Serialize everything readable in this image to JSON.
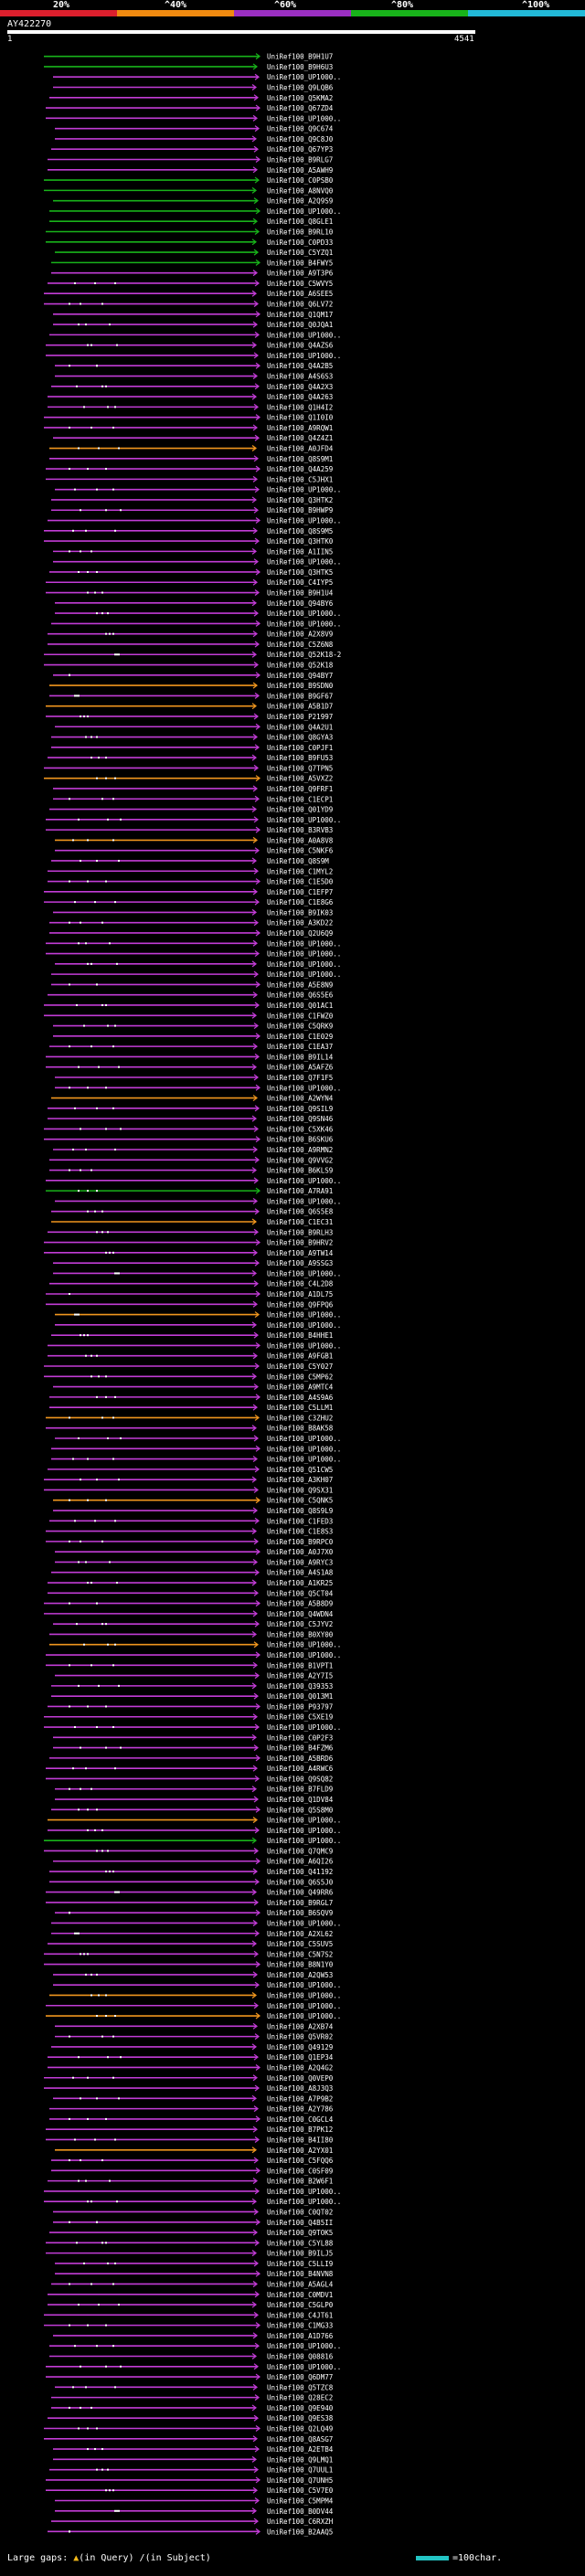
{
  "legend": {
    "labels": [
      "20%",
      "^40%",
      "^60%",
      "^80%",
      "^100%"
    ],
    "colors": [
      "#dd1f2d",
      "#f08a10",
      "#9b2fc2",
      "#18b31a",
      "#22b9d8"
    ]
  },
  "query": {
    "title": "AY422270",
    "start": "1",
    "end": "4541"
  },
  "footer": {
    "prefix": "Large gaps:",
    "in_query": "(in Query)",
    "in_subject": "(in Subject)",
    "scale": "=100char."
  },
  "hits": [
    {
      "label": "UniRef100_B9H1U7",
      "color": "green"
    },
    {
      "label": "UniRef100_B9H6U3",
      "color": "green"
    },
    {
      "label": "UniRef100_UP1000..",
      "color": "purple"
    },
    {
      "label": "UniRef100_Q9LQB6",
      "color": "purple"
    },
    {
      "label": "UniRef100_Q5KMA2",
      "color": "purple"
    },
    {
      "label": "UniRef100_Q67ZD4",
      "color": "purple"
    },
    {
      "label": "UniRef100_UP1000..",
      "color": "purple"
    },
    {
      "label": "UniRef100_Q9C674",
      "color": "purple"
    },
    {
      "label": "UniRef100_Q9C8J0",
      "color": "purple"
    },
    {
      "label": "UniRef100_Q67YP3",
      "color": "purple"
    },
    {
      "label": "UniRef100_B9RLG7",
      "color": "purple"
    },
    {
      "label": "UniRef100_A5AWH9",
      "color": "purple"
    },
    {
      "label": "UniRef100_C0PSB0",
      "color": "green"
    },
    {
      "label": "UniRef100_A8NVQ0",
      "color": "green"
    },
    {
      "label": "UniRef100_A2Q9S9",
      "color": "green"
    },
    {
      "label": "UniRef100_UP1000..",
      "color": "green"
    },
    {
      "label": "UniRef100_Q8GLE1",
      "color": "green"
    },
    {
      "label": "UniRef100_B9RL10",
      "color": "green"
    },
    {
      "label": "UniRef100_C0PD33",
      "color": "green"
    },
    {
      "label": "UniRef100_C5YZQ1",
      "color": "green"
    },
    {
      "label": "UniRef100_B4FWY5",
      "color": "green"
    },
    {
      "label": "UniRef100_A9T3P6",
      "color": "purple"
    },
    {
      "label": "UniRef100_C5WVY5",
      "color": "purple"
    },
    {
      "label": "UniRef100_A6SEE5",
      "color": "purple"
    },
    {
      "label": "UniRef100_Q6LV72",
      "color": "purple"
    },
    {
      "label": "UniRef100_Q1QM17",
      "color": "purple"
    },
    {
      "label": "UniRef100_Q0JQA1",
      "color": "purple"
    },
    {
      "label": "UniRef100_UP1000..",
      "color": "purple"
    },
    {
      "label": "UniRef100_Q4AZS6",
      "color": "purple"
    },
    {
      "label": "UniRef100_UP1000..",
      "color": "purple"
    },
    {
      "label": "UniRef100_Q4A2B5",
      "color": "purple"
    },
    {
      "label": "UniRef100_A4S6S3",
      "color": "purple"
    },
    {
      "label": "UniRef100_Q4A2X3",
      "color": "purple"
    },
    {
      "label": "UniRef100_Q4A263",
      "color": "purple"
    },
    {
      "label": "UniRef100_Q1H4I2",
      "color": "purple"
    },
    {
      "label": "UniRef100_Q1I0I0",
      "color": "purple"
    },
    {
      "label": "UniRef100_A9RQW1",
      "color": "purple"
    },
    {
      "label": "UniRef100_Q4Z4Z1",
      "color": "purple"
    },
    {
      "label": "UniRef100_A0JFD4",
      "color": "orange"
    },
    {
      "label": "UniRef100_Q8S9M1",
      "color": "purple"
    },
    {
      "label": "UniRef100_Q4A259",
      "color": "purple"
    },
    {
      "label": "UniRef100_C5JHX1",
      "color": "purple"
    },
    {
      "label": "UniRef100_UP1000..",
      "color": "purple"
    },
    {
      "label": "UniRef100_Q3HTK2",
      "color": "purple"
    },
    {
      "label": "UniRef100_B9HWP9",
      "color": "purple"
    },
    {
      "label": "UniRef100_UP1000..",
      "color": "purple"
    },
    {
      "label": "UniRef100_Q8S9M5",
      "color": "purple"
    },
    {
      "label": "UniRef100_Q3HTK0",
      "color": "purple"
    },
    {
      "label": "UniRef100_A1IIN5",
      "color": "purple"
    },
    {
      "label": "UniRef100_UP1000..",
      "color": "purple"
    },
    {
      "label": "UniRef100_Q3HTK5",
      "color": "purple"
    },
    {
      "label": "UniRef100_C4IYP5",
      "color": "purple"
    },
    {
      "label": "UniRef100_B9H1U4",
      "color": "purple"
    },
    {
      "label": "UniRef100_Q94BY6",
      "color": "purple"
    },
    {
      "label": "UniRef100_UP1000..",
      "color": "purple"
    },
    {
      "label": "UniRef100_UP1000..",
      "color": "purple"
    },
    {
      "label": "UniRef100_A2X8V9",
      "color": "purple"
    },
    {
      "label": "UniRef100_C5Z6N8",
      "color": "purple"
    },
    {
      "label": "UniRef100_Q52K18-2",
      "color": "purple"
    },
    {
      "label": "UniRef100_Q52K18",
      "color": "purple"
    },
    {
      "label": "UniRef100_Q94BY7",
      "color": "purple"
    },
    {
      "label": "UniRef100_B9SDN0",
      "color": "orange"
    },
    {
      "label": "UniRef100_B9GF67",
      "color": "purple"
    },
    {
      "label": "UniRef100_A5B1D7",
      "color": "orange"
    },
    {
      "label": "UniRef100_P21997",
      "color": "purple"
    },
    {
      "label": "UniRef100_Q4A2U1",
      "color": "purple"
    },
    {
      "label": "UniRef100_Q8GYA3",
      "color": "purple"
    },
    {
      "label": "UniRef100_C0PJF1",
      "color": "purple"
    },
    {
      "label": "UniRef100_B9FU53",
      "color": "purple"
    },
    {
      "label": "UniRef100_Q7TPN5",
      "color": "purple"
    },
    {
      "label": "UniRef100_A5VXZ2",
      "color": "orange"
    },
    {
      "label": "UniRef100_Q9FRF1",
      "color": "purple"
    },
    {
      "label": "UniRef100_C1ECP1",
      "color": "purple"
    },
    {
      "label": "UniRef100_Q01YD9",
      "color": "purple"
    },
    {
      "label": "UniRef100_UP1000..",
      "color": "purple"
    },
    {
      "label": "UniRef100_B3RVB3",
      "color": "purple"
    },
    {
      "label": "UniRef100_A0A8V8",
      "color": "orange"
    },
    {
      "label": "UniRef100_C5NKF6",
      "color": "purple"
    },
    {
      "label": "UniRef100_Q8S9M",
      "color": "purple"
    },
    {
      "label": "UniRef100_C1MYL2",
      "color": "purple"
    },
    {
      "label": "UniRef100_C1E5D0",
      "color": "purple"
    },
    {
      "label": "UniRef100_C1EFP7",
      "color": "purple"
    },
    {
      "label": "UniRef100_C1E8G6",
      "color": "purple"
    },
    {
      "label": "UniRef100_B9IK03",
      "color": "purple"
    },
    {
      "label": "UniRef100_A3KD22",
      "color": "purple"
    },
    {
      "label": "UniRef100_Q2U6Q9",
      "color": "purple"
    },
    {
      "label": "UniRef100_UP1000..",
      "color": "purple"
    },
    {
      "label": "UniRef100_UP1000..",
      "color": "purple"
    },
    {
      "label": "UniRef100_UP1000..",
      "color": "purple"
    },
    {
      "label": "UniRef100_UP1000..",
      "color": "purple"
    },
    {
      "label": "UniRef100_A5E8N9",
      "color": "purple"
    },
    {
      "label": "UniRef100_Q6S5E6",
      "color": "purple"
    },
    {
      "label": "UniRef100_Q01AC1",
      "color": "purple"
    },
    {
      "label": "UniRef100_C1FWZ0",
      "color": "purple"
    },
    {
      "label": "UniRef100_C5QRK9",
      "color": "purple"
    },
    {
      "label": "UniRef100_C1E029",
      "color": "purple"
    },
    {
      "label": "UniRef100_C1EA37",
      "color": "purple"
    },
    {
      "label": "UniRef100_B9IL14",
      "color": "purple"
    },
    {
      "label": "UniRef100_A5AFZ6",
      "color": "purple"
    },
    {
      "label": "UniRef100_Q7F1F5",
      "color": "purple"
    },
    {
      "label": "UniRef100_UP1000..",
      "color": "purple"
    },
    {
      "label": "UniRef100_A2WYN4",
      "color": "orange"
    },
    {
      "label": "UniRef100_Q9SIL9",
      "color": "purple"
    },
    {
      "label": "UniRef100_Q9SN46",
      "color": "purple"
    },
    {
      "label": "UniRef100_C5XK46",
      "color": "purple"
    },
    {
      "label": "UniRef100_B6SKU6",
      "color": "purple"
    },
    {
      "label": "UniRef100_A9RMN2",
      "color": "purple"
    },
    {
      "label": "UniRef100_Q9VVG2",
      "color": "purple"
    },
    {
      "label": "UniRef100_B6KLS9",
      "color": "purple"
    },
    {
      "label": "UniRef100_UP1000..",
      "color": "purple"
    },
    {
      "label": "UniRef100_A7RA91",
      "color": "green"
    },
    {
      "label": "UniRef100_UP1000..",
      "color": "purple"
    },
    {
      "label": "UniRef100_Q6S5E8",
      "color": "purple"
    },
    {
      "label": "UniRef100_C1EC31",
      "color": "orange"
    },
    {
      "label": "UniRef100_B9RLH3",
      "color": "purple"
    },
    {
      "label": "UniRef100_B9HRV2",
      "color": "purple"
    },
    {
      "label": "UniRef100_A9TW14",
      "color": "purple"
    },
    {
      "label": "UniRef100_A9SSG3",
      "color": "purple"
    },
    {
      "label": "UniRef100_UP1000..",
      "color": "purple"
    },
    {
      "label": "UniRef100_C4L2D8",
      "color": "purple"
    },
    {
      "label": "UniRef100_A1DL75",
      "color": "purple"
    },
    {
      "label": "UniRef100_Q9FPQ6",
      "color": "purple"
    },
    {
      "label": "UniRef100_UP1000..",
      "color": "orange"
    },
    {
      "label": "UniRef100_UP1000..",
      "color": "purple"
    },
    {
      "label": "UniRef100_B4HHE1",
      "color": "purple"
    },
    {
      "label": "UniRef100_UP1000..",
      "color": "purple"
    },
    {
      "label": "UniRef100_A9FGB1",
      "color": "purple"
    },
    {
      "label": "UniRef100_C5Y027",
      "color": "purple"
    },
    {
      "label": "UniRef100_C5MP62",
      "color": "purple"
    },
    {
      "label": "UniRef100_A9MTC4",
      "color": "purple"
    },
    {
      "label": "UniRef100_A4S9A6",
      "color": "purple"
    },
    {
      "label": "UniRef100_C5LLM1",
      "color": "purple"
    },
    {
      "label": "UniRef100_C3ZHU2",
      "color": "orange"
    },
    {
      "label": "UniRef100_B8AK58",
      "color": "purple"
    },
    {
      "label": "UniRef100_UP1000..",
      "color": "purple"
    },
    {
      "label": "UniRef100_UP1000..",
      "color": "purple"
    },
    {
      "label": "UniRef100_UP1000..",
      "color": "purple"
    },
    {
      "label": "UniRef100_Q51CW5",
      "color": "purple"
    },
    {
      "label": "UniRef100_A3KH07",
      "color": "purple"
    },
    {
      "label": "UniRef100_Q9SX31",
      "color": "purple"
    },
    {
      "label": "UniRef100_C5QNK5",
      "color": "orange"
    },
    {
      "label": "UniRef100_Q8S9L9",
      "color": "purple"
    },
    {
      "label": "UniRef100_C1FED3",
      "color": "purple"
    },
    {
      "label": "UniRef100_C1E8S3",
      "color": "purple"
    },
    {
      "label": "UniRef100_B9RPC0",
      "color": "purple"
    },
    {
      "label": "UniRef100_A0J7X0",
      "color": "purple"
    },
    {
      "label": "UniRef100_A9RYC3",
      "color": "purple"
    },
    {
      "label": "UniRef100_A4S1A8",
      "color": "purple"
    },
    {
      "label": "UniRef100_A1KR25",
      "color": "purple"
    },
    {
      "label": "UniRef100_Q5CT04",
      "color": "purple"
    },
    {
      "label": "UniRef100_A5B8D9",
      "color": "purple"
    },
    {
      "label": "UniRef100_Q4WDN4",
      "color": "purple"
    },
    {
      "label": "UniRef100_C5JYV2",
      "color": "purple"
    },
    {
      "label": "UniRef100_B0XY00",
      "color": "purple"
    },
    {
      "label": "UniRef100_UP1000..",
      "color": "orange"
    },
    {
      "label": "UniRef100_UP1000..",
      "color": "purple"
    },
    {
      "label": "UniRef100_B1VPT1",
      "color": "purple"
    },
    {
      "label": "UniRef100_A2Y7I5",
      "color": "purple"
    },
    {
      "label": "UniRef100_Q39353",
      "color": "purple"
    },
    {
      "label": "UniRef100_Q013M1",
      "color": "purple"
    },
    {
      "label": "UniRef100_P93797",
      "color": "purple"
    },
    {
      "label": "UniRef100_C5XE19",
      "color": "purple"
    },
    {
      "label": "UniRef100_UP1000..",
      "color": "purple"
    },
    {
      "label": "UniRef100_C0P2F3",
      "color": "purple"
    },
    {
      "label": "UniRef100_B4FZM6",
      "color": "purple"
    },
    {
      "label": "UniRef100_A5BRD6",
      "color": "purple"
    },
    {
      "label": "UniRef100_A4RWC6",
      "color": "purple"
    },
    {
      "label": "UniRef100_Q9SQ82",
      "color": "purple"
    },
    {
      "label": "UniRef100_B7FLD9",
      "color": "purple"
    },
    {
      "label": "UniRef100_Q1DV84",
      "color": "purple"
    },
    {
      "label": "UniRef100_Q5S8M0",
      "color": "purple"
    },
    {
      "label": "UniRef100_UP1000..",
      "color": "orange"
    },
    {
      "label": "UniRef100_UP1000..",
      "color": "purple"
    },
    {
      "label": "UniRef100_UP1000..",
      "color": "green"
    },
    {
      "label": "UniRef100_Q7QMC9",
      "color": "purple"
    },
    {
      "label": "UniRef100_A6QI26",
      "color": "purple"
    },
    {
      "label": "UniRef100_Q41192",
      "color": "purple"
    },
    {
      "label": "UniRef100_Q6S5J0",
      "color": "purple"
    },
    {
      "label": "UniRef100_Q49RR6",
      "color": "purple"
    },
    {
      "label": "UniRef100_B9RGL7",
      "color": "purple"
    },
    {
      "label": "UniRef100_B6SQV9",
      "color": "purple"
    },
    {
      "label": "UniRef100_UP1000..",
      "color": "purple"
    },
    {
      "label": "UniRef100_A2XL62",
      "color": "purple"
    },
    {
      "label": "UniRef100_C5SUV5",
      "color": "purple"
    },
    {
      "label": "UniRef100_C5N7S2",
      "color": "purple"
    },
    {
      "label": "UniRef100_B8N1Y0",
      "color": "purple"
    },
    {
      "label": "UniRef100_A2QW53",
      "color": "purple"
    },
    {
      "label": "UniRef100_UP1000..",
      "color": "purple"
    },
    {
      "label": "UniRef100_UP1000..",
      "color": "orange"
    },
    {
      "label": "UniRef100_UP1000..",
      "color": "purple"
    },
    {
      "label": "UniRef100_UP1000..",
      "color": "orange"
    },
    {
      "label": "UniRef100_A2XB74",
      "color": "purple"
    },
    {
      "label": "UniRef100_Q5VR02",
      "color": "purple"
    },
    {
      "label": "UniRef100_Q49129",
      "color": "purple"
    },
    {
      "label": "UniRef100_Q1EP34",
      "color": "purple"
    },
    {
      "label": "UniRef100_A2Q4G2",
      "color": "purple"
    },
    {
      "label": "UniRef100_Q0VEP0",
      "color": "purple"
    },
    {
      "label": "UniRef100_A8J3Q3",
      "color": "purple"
    },
    {
      "label": "UniRef100_A7P9B2",
      "color": "purple"
    },
    {
      "label": "UniRef100_A2Y786",
      "color": "purple"
    },
    {
      "label": "UniRef100_C0GCL4",
      "color": "purple"
    },
    {
      "label": "UniRef100_B7PK12",
      "color": "purple"
    },
    {
      "label": "UniRef100_B4II80",
      "color": "purple"
    },
    {
      "label": "UniRef100_A2YX01",
      "color": "orange"
    },
    {
      "label": "UniRef100_C5FQQ6",
      "color": "purple"
    },
    {
      "label": "UniRef100_C0SF09",
      "color": "purple"
    },
    {
      "label": "UniRef100_B2W6F1",
      "color": "purple"
    },
    {
      "label": "UniRef100_UP1000..",
      "color": "purple"
    },
    {
      "label": "UniRef100_UP1000..",
      "color": "purple"
    },
    {
      "label": "UniRef100_C0QT02",
      "color": "purple"
    },
    {
      "label": "UniRef100_Q4B5II",
      "color": "purple"
    },
    {
      "label": "UniRef100_Q9TOK5",
      "color": "purple"
    },
    {
      "label": "UniRef100_C5YL88",
      "color": "purple"
    },
    {
      "label": "UniRef100_B9ILJ5",
      "color": "purple"
    },
    {
      "label": "UniRef100_C5LLI9",
      "color": "purple"
    },
    {
      "label": "UniRef100_B4NVN8",
      "color": "purple"
    },
    {
      "label": "UniRef100_A5AGL4",
      "color": "purple"
    },
    {
      "label": "UniRef100_C0MDV1",
      "color": "purple"
    },
    {
      "label": "UniRef100_C5GLP0",
      "color": "purple"
    },
    {
      "label": "UniRef100_C4JT61",
      "color": "purple"
    },
    {
      "label": "UniRef100_C1MG33",
      "color": "purple"
    },
    {
      "label": "UniRef100_A1D766",
      "color": "purple"
    },
    {
      "label": "UniRef100_UP1000..",
      "color": "purple"
    },
    {
      "label": "UniRef100_Q08816",
      "color": "purple"
    },
    {
      "label": "UniRef100_UP1000..",
      "color": "purple"
    },
    {
      "label": "UniRef100_Q6DM77",
      "color": "purple"
    },
    {
      "label": "UniRef100_Q5TZC8",
      "color": "purple"
    },
    {
      "label": "UniRef100_Q28EC2",
      "color": "purple"
    },
    {
      "label": "UniRef100_Q9E940",
      "color": "purple"
    },
    {
      "label": "UniRef100_Q9ES38",
      "color": "purple"
    },
    {
      "label": "UniRef100_Q2LQ49",
      "color": "purple"
    },
    {
      "label": "UniRef100_Q8ASG7",
      "color": "purple"
    },
    {
      "label": "UniRef100_A2ETB4",
      "color": "purple"
    },
    {
      "label": "UniRef100_Q9LMQ1",
      "color": "purple"
    },
    {
      "label": "UniRef100_Q7UUL1",
      "color": "purple"
    },
    {
      "label": "UniRef100_Q7UNH5",
      "color": "purple"
    },
    {
      "label": "UniRef100_C5V7E0",
      "color": "purple"
    },
    {
      "label": "UniRef100_C5MPM4",
      "color": "purple"
    },
    {
      "label": "UniRef100_B0DV44",
      "color": "purple"
    },
    {
      "label": "UniRef100_C6RXZH",
      "color": "purple"
    },
    {
      "label": "UniRef100_B2AAQ5",
      "color": "purple"
    }
  ]
}
